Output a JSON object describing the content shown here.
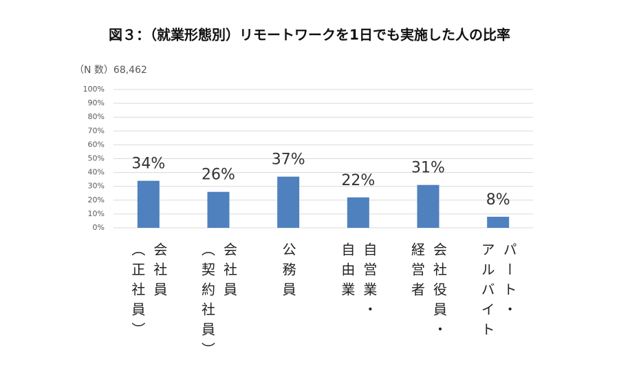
{
  "chart_data": {
    "type": "bar",
    "title": "図３：（就業形態別）リモートワークを1日でも実施した人の比率",
    "note": "（N 数）68,462",
    "categories": [
      "会社員\n（正社員）",
      "会社員\n（契約社員）",
      "公務員",
      "自営業・\n自由業",
      "会社役員・\n経営者",
      "パート・\nアルバイト"
    ],
    "values": [
      34,
      26,
      37,
      22,
      31,
      8
    ],
    "value_labels": [
      "34%",
      "26%",
      "37%",
      "22%",
      "31%",
      "8%"
    ],
    "color": "#4e81bd",
    "ylim": [
      0,
      100
    ],
    "yticks": [
      {
        "value": 0,
        "label": "0%"
      },
      {
        "value": 10,
        "label": "10%"
      },
      {
        "value": 20,
        "label": "20%"
      },
      {
        "value": 30,
        "label": "30%"
      },
      {
        "value": 40,
        "label": "40%"
      },
      {
        "value": 50,
        "label": "50%"
      },
      {
        "value": 60,
        "label": "60%"
      },
      {
        "value": 70,
        "label": "70%"
      },
      {
        "value": 80,
        "label": "80%"
      },
      {
        "value": 90,
        "label": "90%"
      },
      {
        "value": 100,
        "label": "100%"
      }
    ],
    "grid": true
  }
}
